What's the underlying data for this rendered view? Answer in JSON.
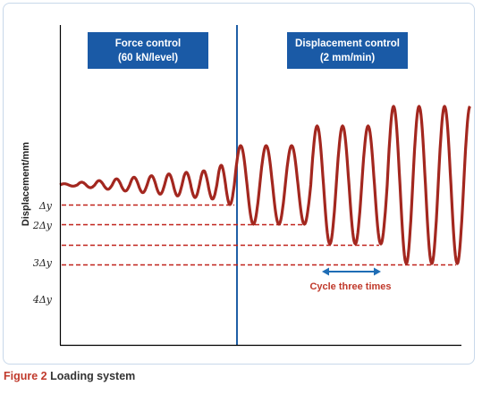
{
  "colors": {
    "wave": "#a3271f",
    "divider": "#1f5fa6",
    "phase_box": "#1a5aa6",
    "ref_line": "#c0221b",
    "axis": "#000000",
    "arrow": "#1f6db5",
    "annotation": "#c0392b",
    "frame": "#c8d8ea"
  },
  "caption": {
    "number": "Figure 2",
    "title": "Loading system"
  },
  "chart_data": {
    "type": "line",
    "title": "",
    "xlabel": "",
    "ylabel": "Displacement/mm",
    "y_ticks": [
      "Δy",
      "2Δy",
      "3Δy",
      "4Δy"
    ],
    "grid": false,
    "phases": [
      {
        "line1": "Force control",
        "line2": "(60 kN/level)"
      },
      {
        "line1": "Displacement control",
        "line2": "(2 mm/min)"
      }
    ],
    "annotation": "Cycle three times",
    "force_control_cycles": [
      0.06,
      0.14,
      0.22,
      0.31,
      0.39,
      0.47,
      0.56,
      0.64,
      0.72,
      1.0
    ],
    "displacement_control_levels": [
      {
        "level": 2,
        "cycles": 3
      },
      {
        "level": 3,
        "cycles": 3
      },
      {
        "level": 4,
        "cycles": 3
      }
    ]
  }
}
